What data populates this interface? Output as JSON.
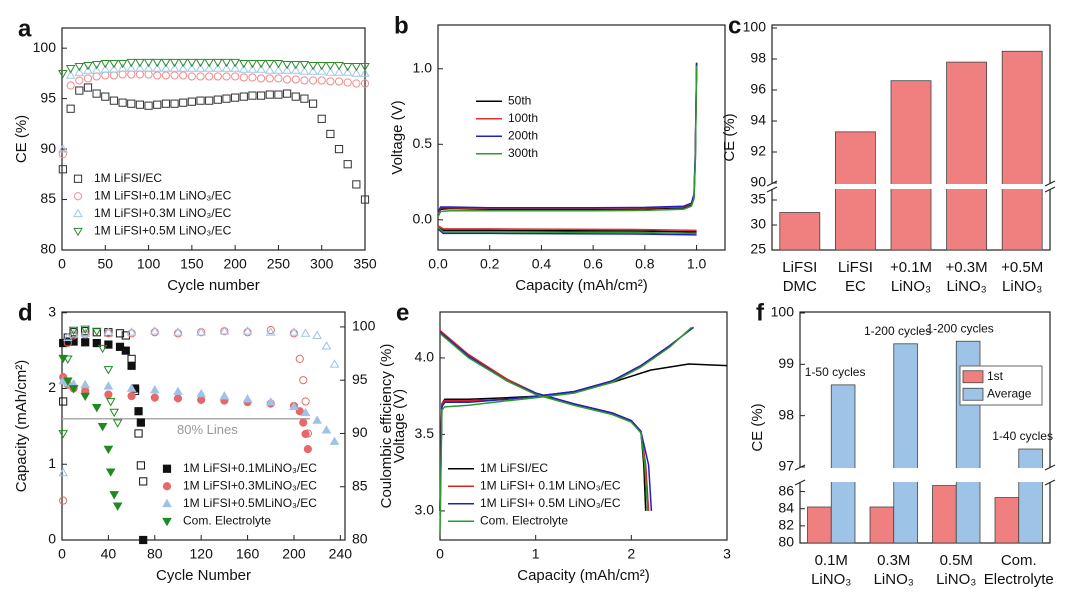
{
  "chart_data": [
    {
      "type": "scatter",
      "panel": "a",
      "xlabel": "Cycle number",
      "ylabel": "CE (%)",
      "xlim": [
        0,
        350
      ],
      "ylim": [
        80,
        102
      ],
      "xticks": [
        0,
        50,
        100,
        150,
        200,
        250,
        300,
        350
      ],
      "yticks": [
        80,
        85,
        90,
        95,
        100
      ],
      "hollow": true,
      "legend": "lower left",
      "x": [
        1,
        10,
        20,
        30,
        40,
        50,
        60,
        70,
        80,
        90,
        100,
        110,
        120,
        130,
        140,
        150,
        160,
        170,
        180,
        190,
        200,
        210,
        220,
        230,
        240,
        250,
        260,
        270,
        280,
        290,
        300,
        310,
        320,
        330,
        340,
        350
      ],
      "series": [
        {
          "name": "1M LiFSI/EC",
          "color": "#333333",
          "marker": "square",
          "values": [
            88,
            94,
            95.8,
            96.1,
            95.5,
            95.2,
            94.8,
            94.6,
            94.5,
            94.4,
            94.3,
            94.4,
            94.5,
            94.5,
            94.6,
            94.7,
            94.8,
            94.8,
            94.9,
            95,
            95.1,
            95.2,
            95.3,
            95.3,
            95.4,
            95.4,
            95.5,
            95.2,
            95,
            94.5,
            93,
            91.5,
            90,
            88.5,
            86.5,
            85
          ]
        },
        {
          "name": "1M LiFSI+0.1M LiNO₃/EC",
          "color": "#f08a8a",
          "marker": "circle",
          "values": [
            89.5,
            96.3,
            96.8,
            97,
            97.2,
            97.3,
            97.3,
            97.4,
            97.4,
            97.4,
            97.4,
            97.3,
            97.3,
            97.3,
            97.3,
            97.2,
            97.2,
            97.2,
            97.2,
            97.2,
            97.2,
            97.1,
            97.1,
            97,
            97,
            97,
            96.9,
            96.9,
            96.8,
            96.8,
            96.8,
            96.7,
            96.7,
            96.6,
            96.5,
            96.5
          ]
        },
        {
          "name": "1M LiFSI+0.3M LiNO₃/EC",
          "color": "#9ec9e8",
          "marker": "triangle-up",
          "values": [
            90,
            97.3,
            97.6,
            97.8,
            97.8,
            97.9,
            97.9,
            98,
            98,
            98,
            98,
            98,
            98,
            98,
            98,
            98,
            98,
            98,
            98,
            98,
            98,
            97.9,
            97.9,
            97.9,
            97.8,
            97.8,
            97.8,
            97.8,
            97.7,
            97.7,
            97.7,
            97.6,
            97.6,
            97.6,
            97.5,
            97.5
          ]
        },
        {
          "name": "1M LiFSI+0.5M LiNO₃/EC",
          "color": "#2e8b2e",
          "marker": "triangle-down",
          "values": [
            97.5,
            98,
            98.2,
            98.3,
            98.4,
            98.5,
            98.5,
            98.5,
            98.6,
            98.6,
            98.6,
            98.6,
            98.6,
            98.6,
            98.6,
            98.6,
            98.6,
            98.6,
            98.6,
            98.6,
            98.6,
            98.5,
            98.5,
            98.5,
            98.5,
            98.5,
            98.4,
            98.4,
            98.4,
            98.3,
            98.3,
            98.3,
            98.3,
            98.2,
            98.2,
            98.2
          ]
        }
      ]
    },
    {
      "type": "line",
      "panel": "b",
      "xlabel": "Capacity (mAh/cm²)",
      "ylabel": "Voltage (V)",
      "xlim": [
        0,
        1.11
      ],
      "ylim": [
        -0.2,
        1.29
      ],
      "xticks": [
        {
          "value": 0,
          "label": "0.0"
        },
        0.2,
        0.4,
        0.6,
        0.8,
        {
          "value": 1,
          "label": "1.0"
        }
      ],
      "yticks": [
        {
          "value": 0,
          "label": "0.0"
        },
        0.5,
        {
          "value": 1,
          "label": "1.0"
        }
      ],
      "legend": "center left",
      "series": [
        {
          "name": "50th",
          "color": "#000000",
          "x": [
            0,
            0.01,
            0.05,
            0.2,
            0.4,
            0.6,
            0.8,
            0.95,
            0.98,
            0.99,
            0.995,
            1.0,
            null,
            0,
            0.02,
            0.2,
            0.5,
            0.8,
            1.0
          ],
          "values": [
            0.03,
            0.07,
            0.075,
            0.07,
            0.07,
            0.07,
            0.072,
            0.08,
            0.1,
            0.15,
            0.4,
            1.04,
            null,
            -0.05,
            -0.07,
            -0.07,
            -0.072,
            -0.075,
            -0.08
          ]
        },
        {
          "name": "100th",
          "color": "#e03030",
          "x": [
            0,
            0.01,
            0.05,
            0.2,
            0.4,
            0.6,
            0.8,
            0.95,
            0.98,
            0.99,
            0.995,
            1.0,
            null,
            0,
            0.02,
            0.2,
            0.5,
            0.8,
            1.0
          ],
          "values": [
            0.04,
            0.08,
            0.08,
            0.075,
            0.075,
            0.075,
            0.078,
            0.085,
            0.105,
            0.16,
            0.42,
            1.03,
            null,
            -0.04,
            -0.06,
            -0.06,
            -0.062,
            -0.065,
            -0.07
          ]
        },
        {
          "name": "200th",
          "color": "#2020c0",
          "x": [
            0,
            0.01,
            0.05,
            0.2,
            0.4,
            0.6,
            0.8,
            0.95,
            0.98,
            0.99,
            0.995,
            1.0,
            null,
            0,
            0.02,
            0.2,
            0.5,
            0.8,
            1.0
          ],
          "values": [
            0.05,
            0.085,
            0.085,
            0.08,
            0.08,
            0.08,
            0.082,
            0.09,
            0.11,
            0.17,
            0.45,
            1.04,
            null,
            -0.06,
            -0.09,
            -0.09,
            -0.092,
            -0.095,
            -0.1
          ]
        },
        {
          "name": "300th",
          "color": "#2e9a2e",
          "x": [
            0,
            0.01,
            0.05,
            0.2,
            0.4,
            0.6,
            0.8,
            0.95,
            0.98,
            0.99,
            0.995,
            1.0,
            null,
            0,
            0.02,
            0.2,
            0.5,
            0.8,
            1.0
          ],
          "values": [
            0.02,
            0.055,
            0.06,
            0.06,
            0.06,
            0.06,
            0.062,
            0.07,
            0.09,
            0.14,
            0.38,
            1.02,
            null,
            -0.05,
            -0.08,
            -0.08,
            -0.082,
            -0.085,
            -0.09
          ]
        }
      ]
    },
    {
      "type": "bar",
      "panel": "c",
      "ylabel": "CE (%)",
      "color": "#f08080",
      "categories": [
        [
          "LiFSI",
          "DMC"
        ],
        [
          "LiFSI",
          "EC"
        ],
        [
          "+0.1M",
          "LiNO₃"
        ],
        [
          "+0.3M",
          "LiNO₃"
        ],
        [
          "+0.5M",
          "LiNO₃"
        ]
      ],
      "values": [
        32.5,
        93.3,
        96.6,
        97.8,
        98.5
      ],
      "segments": [
        {
          "ylim": [
            25,
            37
          ],
          "yticks": [
            25,
            30,
            35
          ]
        },
        {
          "ylim": [
            90,
            100
          ],
          "yticks": [
            90,
            92,
            94,
            96,
            98,
            100
          ]
        }
      ]
    },
    {
      "type": "scatter",
      "panel": "d",
      "xlabel": "Cycle Number",
      "ylabel": "Capacity (mAh/cm²)",
      "y2label": "Coulombic efficiency (%)",
      "xlim": [
        0,
        244
      ],
      "ylim": [
        0,
        3.01
      ],
      "y2lim": [
        80,
        101.4
      ],
      "xticks": [
        0,
        40,
        80,
        120,
        160,
        200,
        240
      ],
      "yticks": [
        0,
        1,
        2,
        3
      ],
      "y2ticks": [
        80,
        85,
        90,
        95,
        100
      ],
      "legend": "lower right",
      "annotation": {
        "text": "80% Lines",
        "y": 1.6
      },
      "series": [
        {
          "name": "1M LiFSI+0.1MLiNO₃/EC",
          "color": "#111111",
          "marker": "square",
          "x": [
            1,
            5,
            10,
            20,
            30,
            40,
            50,
            55,
            60,
            63,
            66,
            68,
            70
          ],
          "values": [
            2.6,
            2.62,
            2.62,
            2.61,
            2.6,
            2.58,
            2.55,
            2.5,
            2.3,
            2.0,
            1.7,
            1.55,
            0
          ],
          "ce": [
            93,
            99,
            99.5,
            99.6,
            99.5,
            99.5,
            99.4,
            99.2,
            97,
            94,
            90,
            87,
            85.5
          ]
        },
        {
          "name": "1M LiFSI+0.3MLiNO₃/EC",
          "color": "#e8676a",
          "marker": "circle",
          "x": [
            1,
            5,
            10,
            20,
            40,
            60,
            80,
            100,
            120,
            140,
            160,
            180,
            200,
            205,
            208,
            210,
            212
          ],
          "values": [
            2.15,
            2.05,
            2.0,
            1.97,
            1.92,
            1.9,
            1.88,
            1.87,
            1.85,
            1.84,
            1.82,
            1.8,
            1.77,
            1.7,
            1.55,
            1.4,
            1.2
          ],
          "ce": [
            83.7,
            98.5,
            99.2,
            99.3,
            99.4,
            99.4,
            99.5,
            99.4,
            99.5,
            99.6,
            99.5,
            99.7,
            99.4,
            97,
            95,
            93,
            90
          ]
        },
        {
          "name": "1M LiFSI+0.5MLiNO₃/EC",
          "color": "#9ec3e6",
          "marker": "triangle-up",
          "x": [
            1,
            5,
            10,
            20,
            40,
            60,
            80,
            100,
            120,
            140,
            160,
            180,
            200,
            210,
            220,
            228,
            235
          ],
          "values": [
            2.1,
            2.07,
            2.06,
            2.05,
            2.03,
            2.0,
            1.98,
            1.96,
            1.93,
            1.9,
            1.86,
            1.82,
            1.76,
            1.68,
            1.58,
            1.45,
            1.3
          ],
          "ce": [
            86.3,
            99,
            99.3,
            99.4,
            99.5,
            99.5,
            99.6,
            99.5,
            99.5,
            99.6,
            99.6,
            99.5,
            99.5,
            99.4,
            99.2,
            98.2,
            96.5
          ]
        },
        {
          "name": "Com. Electrolyte",
          "color": "#1f8a1f",
          "marker": "triangle-down",
          "x": [
            1,
            5,
            10,
            20,
            30,
            35,
            40,
            42,
            45,
            48
          ],
          "values": [
            2.4,
            2.1,
            2.0,
            1.9,
            1.75,
            1.5,
            1.2,
            0.9,
            0.6,
            0.45
          ],
          "ce": [
            90,
            97,
            99.7,
            99.8,
            99.6,
            98,
            96,
            93,
            92,
            91
          ]
        }
      ]
    },
    {
      "type": "line",
      "panel": "e",
      "xlabel": "Capacity (mAh/cm²)",
      "ylabel": "Voltage (V)",
      "xlim": [
        0,
        3
      ],
      "ylim": [
        2.81,
        4.3
      ],
      "xticks": [
        0,
        1,
        2,
        3
      ],
      "yticks": [
        {
          "value": 3,
          "label": "3.0"
        },
        3.5,
        {
          "value": 4,
          "label": "4.0"
        }
      ],
      "legend": "lower left",
      "series": [
        {
          "name": "1M LiFSI/EC",
          "color": "#000000",
          "x": [
            0,
            0.02,
            0.05,
            0.3,
            0.7,
            1.0,
            1.4,
            1.8,
            2.2,
            2.6,
            3.0,
            null,
            0,
            0.3,
            0.7,
            1.0,
            1.4,
            1.8,
            2.0,
            2.1,
            2.13,
            2.15
          ],
          "values": [
            3.0,
            3.7,
            3.73,
            3.73,
            3.74,
            3.75,
            3.78,
            3.84,
            3.92,
            3.96,
            3.95,
            null,
            4.17,
            4.02,
            3.86,
            3.77,
            3.7,
            3.64,
            3.59,
            3.52,
            3.3,
            3.0
          ]
        },
        {
          "name": "1M LiFSI+ 0.1M LiNO₃/EC",
          "color": "#e02020",
          "x": [
            0,
            0.02,
            0.05,
            0.3,
            0.7,
            1.0,
            1.4,
            1.8,
            2.1,
            2.4,
            2.65,
            null,
            0,
            0.3,
            0.7,
            1.0,
            1.4,
            1.8,
            2.0,
            2.1,
            2.15,
            2.18
          ],
          "values": [
            3.0,
            3.7,
            3.72,
            3.72,
            3.73,
            3.75,
            3.78,
            3.85,
            3.95,
            4.08,
            4.2,
            null,
            4.18,
            4.02,
            3.86,
            3.77,
            3.7,
            3.64,
            3.59,
            3.52,
            3.3,
            3.0
          ]
        },
        {
          "name": "1M LiFSI+ 0.5M LiNO₃/EC",
          "color": "#2020c0",
          "x": [
            0,
            0.02,
            0.05,
            0.3,
            0.7,
            1.0,
            1.4,
            1.8,
            2.1,
            2.4,
            2.65,
            null,
            0,
            0.3,
            0.7,
            1.0,
            1.4,
            1.8,
            2.0,
            2.1,
            2.18,
            2.21
          ],
          "values": [
            3.0,
            3.68,
            3.71,
            3.71,
            3.73,
            3.75,
            3.78,
            3.85,
            3.95,
            4.08,
            4.2,
            null,
            4.17,
            4.01,
            3.85,
            3.77,
            3.7,
            3.64,
            3.59,
            3.52,
            3.3,
            3.0
          ]
        },
        {
          "name": "Com. Electrolyte",
          "color": "#2e9a2e",
          "x": [
            0,
            0.02,
            0.05,
            0.3,
            0.7,
            1.0,
            1.4,
            1.8,
            2.1,
            2.4,
            2.63,
            null,
            0,
            0.3,
            0.7,
            1.0,
            1.4,
            1.8,
            2.0,
            2.1,
            2.14,
            2.17
          ],
          "values": [
            2.85,
            3.66,
            3.68,
            3.69,
            3.72,
            3.74,
            3.77,
            3.84,
            3.94,
            4.07,
            4.2,
            null,
            4.16,
            4.0,
            3.85,
            3.76,
            3.69,
            3.63,
            3.58,
            3.51,
            3.3,
            3.0
          ]
        }
      ]
    },
    {
      "type": "bar",
      "panel": "f",
      "ylabel": "CE (%)",
      "legend": "upper right",
      "categories": [
        [
          "0.1M",
          "LiNO₃"
        ],
        [
          "0.3M",
          "LiNO₃"
        ],
        [
          "0.5M",
          "LiNO₃"
        ],
        [
          "Com.",
          "Electrolyte"
        ]
      ],
      "annotations": [
        "1-50 cycles",
        "1-200 cycles",
        "1-200 cycles",
        "1-40 cycles"
      ],
      "series": [
        {
          "name": "1st",
          "color": "#f08080",
          "values": [
            84.2,
            84.2,
            86.7,
            85.3
          ]
        },
        {
          "name": "Average",
          "color": "#9dc3e6",
          "values": [
            98.6,
            99.4,
            99.45,
            97.35
          ]
        }
      ],
      "segments": [
        {
          "ylim": [
            80,
            87
          ],
          "yticks": [
            80,
            82,
            84,
            86
          ]
        },
        {
          "ylim": [
            97,
            100
          ],
          "yticks": [
            97,
            98,
            99,
            100
          ]
        }
      ]
    }
  ]
}
